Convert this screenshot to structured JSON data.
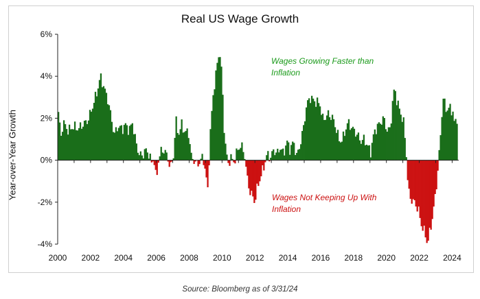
{
  "chart_data": {
    "type": "bar",
    "title": "Real US Wage Growth",
    "ylabel": "Year-over-Year Growth",
    "xlabel": "",
    "ylim": [
      -4,
      6
    ],
    "xlim": [
      2000,
      2024.4
    ],
    "yticks": [
      "-4%",
      "-2%",
      "0%",
      "2%",
      "4%",
      "6%"
    ],
    "xticks": [
      "2000",
      "2002",
      "2004",
      "2006",
      "2008",
      "2010",
      "2012",
      "2014",
      "2016",
      "2018",
      "2020",
      "2022",
      "2024"
    ],
    "annotations": [
      {
        "text": "Wages Growing Faster than",
        "color": "#1a9a1a"
      },
      {
        "text": "Inflation",
        "color": "#1a9a1a"
      },
      {
        "text": "Wages Not Keeping Up With",
        "color": "#cc1111"
      },
      {
        "text": "Inflation",
        "color": "#cc1111"
      }
    ],
    "positive_color": "#1a6e1a",
    "negative_color": "#cc1111",
    "grid": false,
    "source": "Source: Bloomberg as of 3/31/24",
    "anchors": [
      [
        2000.0,
        2.3
      ],
      [
        2000.15,
        1.1
      ],
      [
        2000.3,
        1.8
      ],
      [
        2000.6,
        1.4
      ],
      [
        2000.9,
        1.6
      ],
      [
        2001.2,
        1.5
      ],
      [
        2001.5,
        1.7
      ],
      [
        2001.8,
        1.9
      ],
      [
        2002.1,
        2.6
      ],
      [
        2002.4,
        3.4
      ],
      [
        2002.55,
        4.0
      ],
      [
        2002.8,
        3.4
      ],
      [
        2003.0,
        2.9
      ],
      [
        2003.2,
        2.1
      ],
      [
        2003.4,
        1.2
      ],
      [
        2003.6,
        1.6
      ],
      [
        2003.9,
        1.5
      ],
      [
        2004.1,
        1.7
      ],
      [
        2004.3,
        1.4
      ],
      [
        2004.5,
        1.8
      ],
      [
        2004.7,
        0.9
      ],
      [
        2004.9,
        0.3
      ],
      [
        2005.1,
        0.2
      ],
      [
        2005.3,
        0.5
      ],
      [
        2005.5,
        0.3
      ],
      [
        2005.7,
        -0.2
      ],
      [
        2005.8,
        0.2
      ],
      [
        2005.95,
        -1.0
      ],
      [
        2006.1,
        0.1
      ],
      [
        2006.3,
        0.5
      ],
      [
        2006.5,
        0.4
      ],
      [
        2006.7,
        0.0
      ],
      [
        2006.8,
        -0.4
      ],
      [
        2007.0,
        0.2
      ],
      [
        2007.15,
        1.9
      ],
      [
        2007.3,
        1.2
      ],
      [
        2007.5,
        1.7
      ],
      [
        2007.7,
        1.3
      ],
      [
        2007.9,
        1.4
      ],
      [
        2008.1,
        0.1
      ],
      [
        2008.25,
        0.0
      ],
      [
        2008.4,
        -0.2
      ],
      [
        2008.6,
        -0.1
      ],
      [
        2008.8,
        0.2
      ],
      [
        2009.0,
        -0.9
      ],
      [
        2009.1,
        -1.5
      ],
      [
        2009.2,
        0.8
      ],
      [
        2009.4,
        3.0
      ],
      [
        2009.6,
        4.2
      ],
      [
        2009.8,
        5.3
      ],
      [
        2009.95,
        4.0
      ],
      [
        2010.1,
        1.2
      ],
      [
        2010.3,
        -0.2
      ],
      [
        2010.5,
        0.1
      ],
      [
        2010.7,
        -0.1
      ],
      [
        2010.9,
        0.5
      ],
      [
        2011.1,
        0.7
      ],
      [
        2011.3,
        0.4
      ],
      [
        2011.5,
        -0.9
      ],
      [
        2011.65,
        -1.5
      ],
      [
        2011.8,
        -1.7
      ],
      [
        2011.95,
        -2.0
      ],
      [
        2012.1,
        -1.3
      ],
      [
        2012.3,
        -0.8
      ],
      [
        2012.5,
        -0.3
      ],
      [
        2012.7,
        0.3
      ],
      [
        2012.9,
        0.1
      ],
      [
        2013.1,
        0.5
      ],
      [
        2013.3,
        0.3
      ],
      [
        2013.5,
        0.6
      ],
      [
        2013.7,
        0.3
      ],
      [
        2013.9,
        0.9
      ],
      [
        2014.1,
        0.5
      ],
      [
        2014.3,
        0.9
      ],
      [
        2014.5,
        0.2
      ],
      [
        2014.7,
        0.7
      ],
      [
        2014.9,
        1.5
      ],
      [
        2015.1,
        2.6
      ],
      [
        2015.3,
        3.0
      ],
      [
        2015.6,
        2.8
      ],
      [
        2015.9,
        2.7
      ],
      [
        2016.1,
        1.9
      ],
      [
        2016.4,
        2.2
      ],
      [
        2016.7,
        2.0
      ],
      [
        2016.9,
        1.5
      ],
      [
        2017.1,
        0.9
      ],
      [
        2017.3,
        1.0
      ],
      [
        2017.6,
        1.8
      ],
      [
        2017.8,
        1.6
      ],
      [
        2018.0,
        1.4
      ],
      [
        2018.2,
        1.2
      ],
      [
        2018.4,
        0.9
      ],
      [
        2018.6,
        1.0
      ],
      [
        2018.8,
        0.7
      ],
      [
        2019.0,
        0.4
      ],
      [
        2019.2,
        1.3
      ],
      [
        2019.4,
        1.6
      ],
      [
        2019.6,
        1.8
      ],
      [
        2019.8,
        2.0
      ],
      [
        2020.0,
        1.4
      ],
      [
        2020.2,
        1.5
      ],
      [
        2020.3,
        2.5
      ],
      [
        2020.45,
        3.5
      ],
      [
        2020.6,
        2.8
      ],
      [
        2020.8,
        2.3
      ],
      [
        2021.0,
        1.8
      ],
      [
        2021.15,
        0.5
      ],
      [
        2021.25,
        -0.9
      ],
      [
        2021.35,
        -1.7
      ],
      [
        2021.5,
        -1.9
      ],
      [
        2021.65,
        -2.0
      ],
      [
        2021.8,
        -2.2
      ],
      [
        2021.95,
        -2.5
      ],
      [
        2022.05,
        -3.0
      ],
      [
        2022.2,
        -3.3
      ],
      [
        2022.35,
        -3.6
      ],
      [
        2022.45,
        -4.0
      ],
      [
        2022.55,
        -3.6
      ],
      [
        2022.7,
        -3.0
      ],
      [
        2022.85,
        -2.2
      ],
      [
        2023.0,
        -1.2
      ],
      [
        2023.1,
        -0.3
      ],
      [
        2023.2,
        0.6
      ],
      [
        2023.3,
        1.8
      ],
      [
        2023.4,
        3.0
      ],
      [
        2023.6,
        2.4
      ],
      [
        2023.8,
        2.5
      ],
      [
        2024.0,
        2.3
      ],
      [
        2024.1,
        1.7
      ],
      [
        2024.25,
        2.0
      ]
    ]
  }
}
